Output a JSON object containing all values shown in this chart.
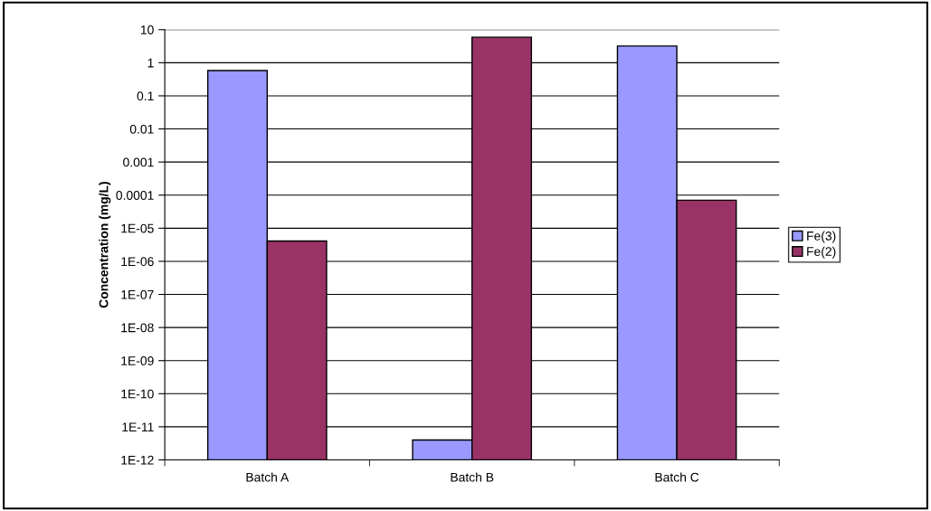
{
  "chart_data": {
    "type": "bar",
    "ylabel": "Concentration (mg/L)",
    "categories": [
      "Batch A",
      "Batch B",
      "Batch C"
    ],
    "series": [
      {
        "name": "Fe(3)",
        "color": "#9999ff",
        "values": [
          0.58,
          4e-12,
          3.2
        ]
      },
      {
        "name": "Fe(2)",
        "color": "#993366",
        "values": [
          4.1e-06,
          5.9,
          7e-05
        ]
      }
    ],
    "log": true,
    "ylim": [
      1e-12,
      10
    ],
    "yticks": [
      {
        "value": 1e-12,
        "label": "1E-12"
      },
      {
        "value": 1e-11,
        "label": "1E-11"
      },
      {
        "value": 1e-10,
        "label": "1E-10"
      },
      {
        "value": 1e-09,
        "label": "1E-09"
      },
      {
        "value": 1e-08,
        "label": "1E-08"
      },
      {
        "value": 1e-07,
        "label": "1E-07"
      },
      {
        "value": 1e-06,
        "label": "1E-06"
      },
      {
        "value": 1e-05,
        "label": "1E-05"
      },
      {
        "value": 0.0001,
        "label": "0.0001"
      },
      0.001,
      0.01,
      0.1,
      1,
      10
    ],
    "grid": "y",
    "legend": "right"
  }
}
